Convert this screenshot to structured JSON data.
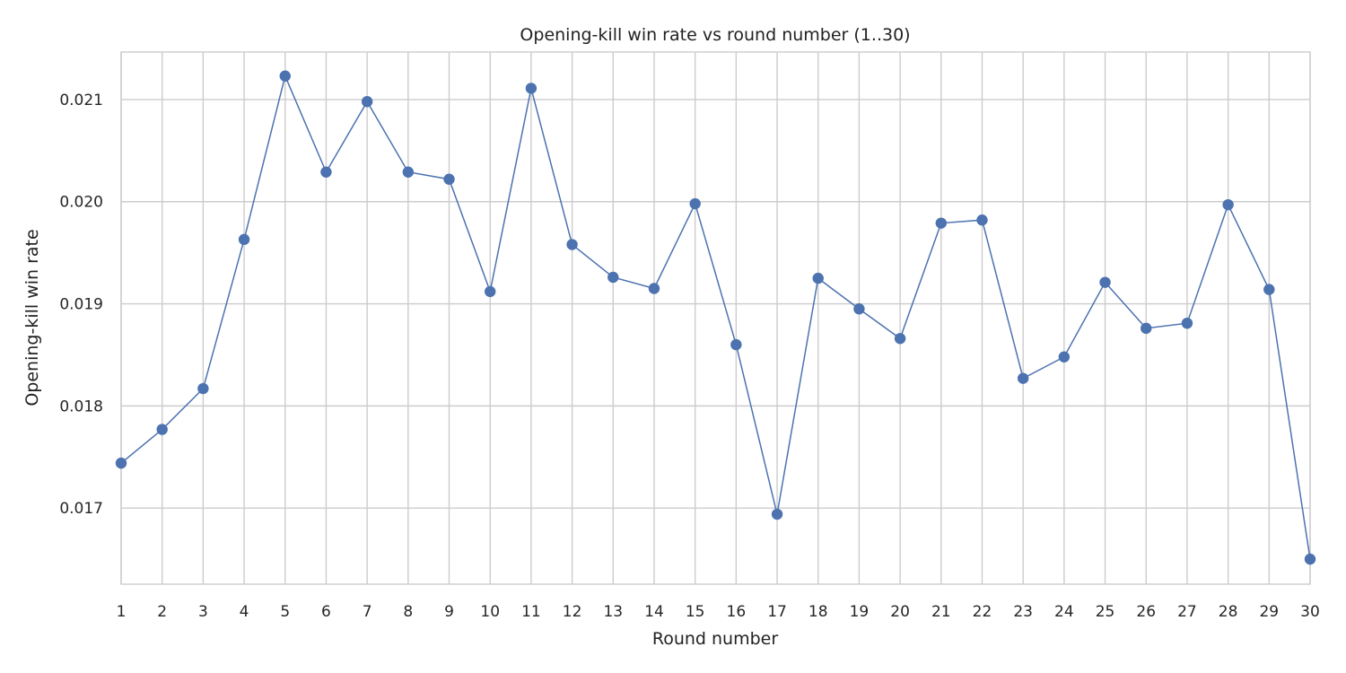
{
  "chart_data": {
    "type": "line",
    "title": "Opening-kill win rate vs round number (1..30)",
    "xlabel": "Round number",
    "ylabel": "Opening-kill win rate",
    "x": [
      1,
      2,
      3,
      4,
      5,
      6,
      7,
      8,
      9,
      10,
      11,
      12,
      13,
      14,
      15,
      16,
      17,
      18,
      19,
      20,
      21,
      22,
      23,
      24,
      25,
      26,
      27,
      28,
      29,
      30
    ],
    "series": [
      {
        "values": [
          0.01744,
          0.01777,
          0.01817,
          0.01963,
          0.02123,
          0.02029,
          0.02098,
          0.02029,
          0.02022,
          0.01912,
          0.02111,
          0.01958,
          0.01926,
          0.01915,
          0.01998,
          0.0186,
          0.01694,
          0.01925,
          0.01895,
          0.01866,
          0.01979,
          0.01982,
          0.01827,
          0.01848,
          0.01921,
          0.01876,
          0.01881,
          0.01997,
          0.01914,
          0.0165
        ],
        "color": "#4c72b0",
        "marker": "circle"
      }
    ],
    "xlim": [
      1,
      30
    ],
    "ylim": [
      0.016255,
      0.021465
    ],
    "yticks": [
      "0.017",
      "0.018",
      "0.019",
      "0.020",
      "0.021"
    ],
    "xticks": [
      "1",
      "2",
      "3",
      "4",
      "5",
      "6",
      "7",
      "8",
      "9",
      "10",
      "11",
      "12",
      "13",
      "14",
      "15",
      "16",
      "17",
      "18",
      "19",
      "20",
      "21",
      "22",
      "23",
      "24",
      "25",
      "26",
      "27",
      "28",
      "29",
      "30"
    ],
    "grid": true,
    "legend": "none"
  }
}
